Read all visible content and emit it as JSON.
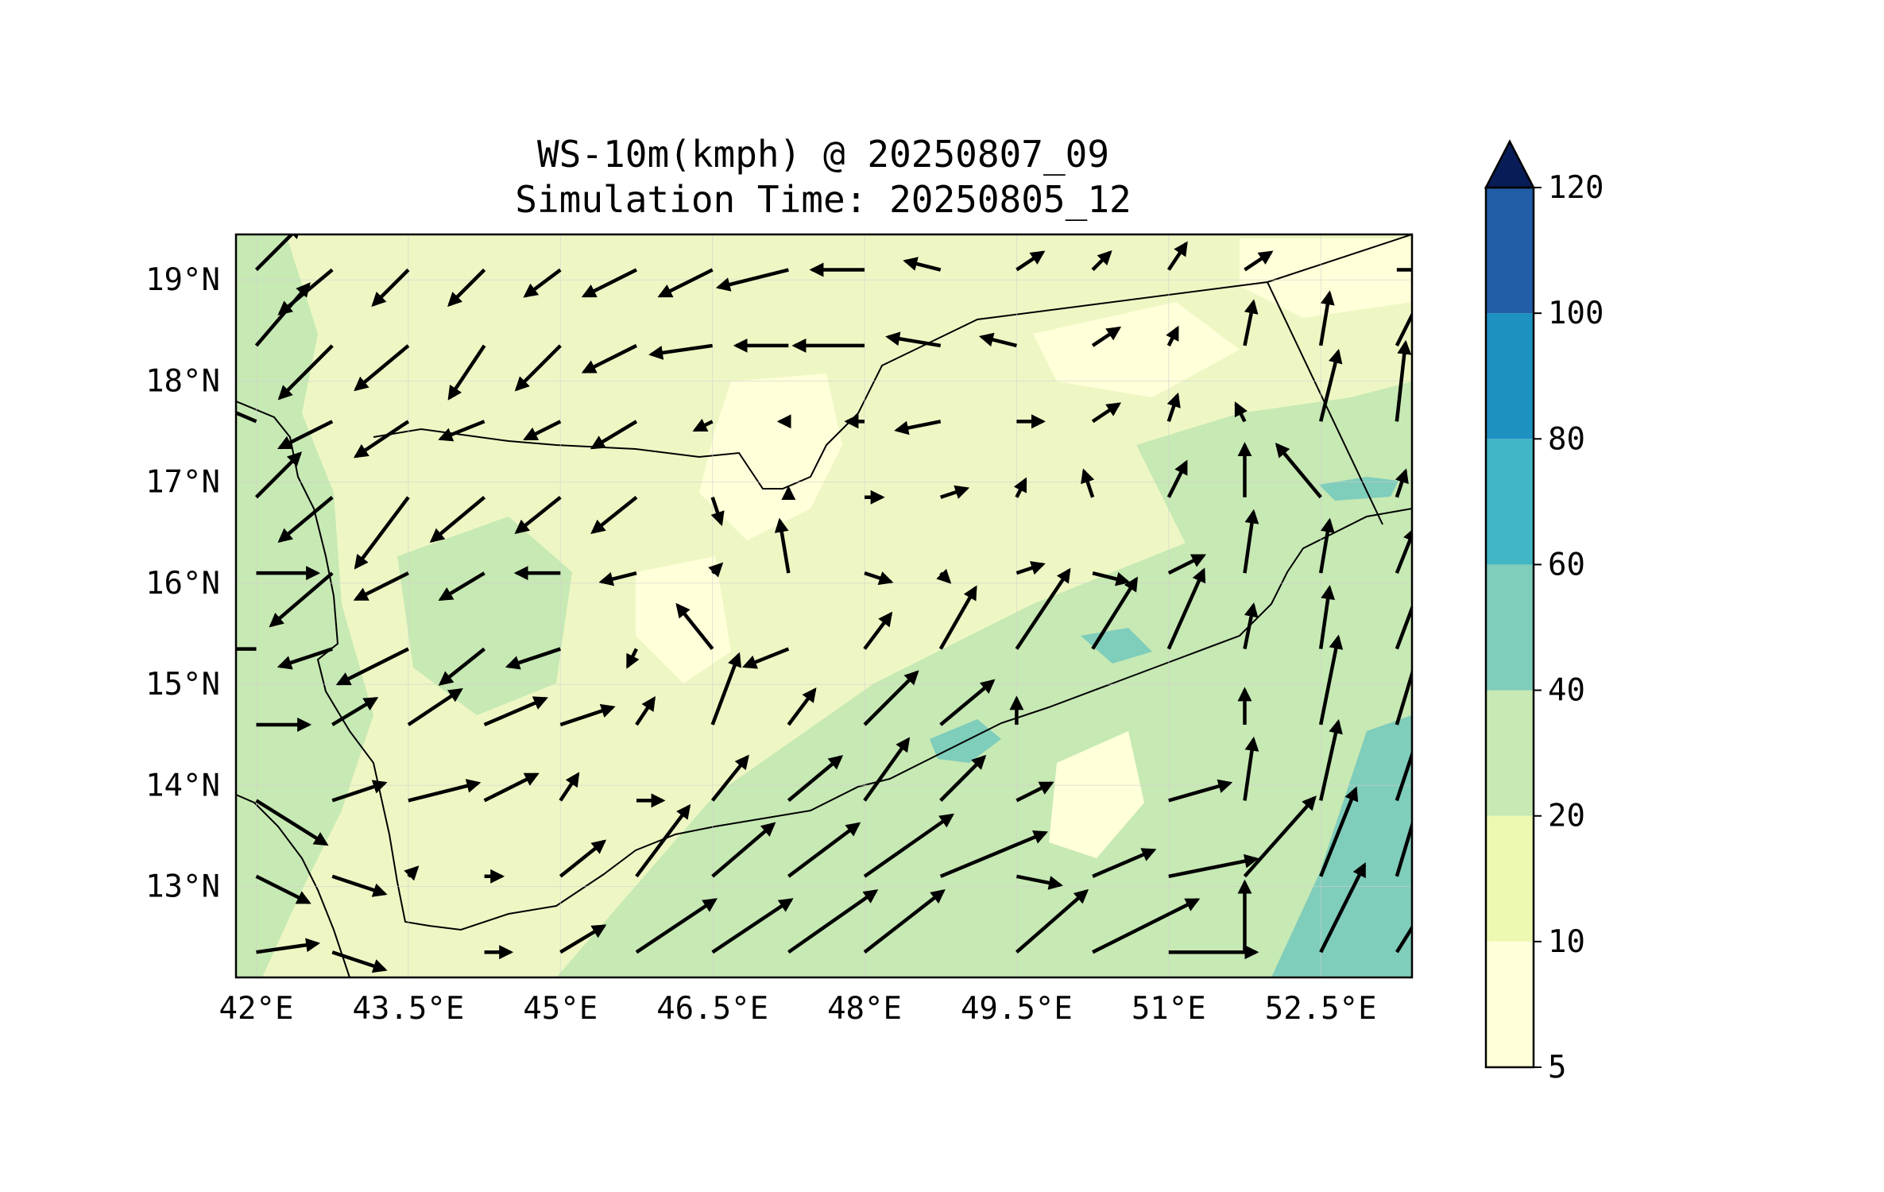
{
  "title": {
    "line1": "WS-10m(kmph) @ 20250807_09",
    "line2": "Simulation Time: 20250805_12"
  },
  "map": {
    "lon_range": [
      41.8,
      53.4
    ],
    "lat_range": [
      12.1,
      19.45
    ],
    "x_tick_values": [
      42,
      43.5,
      45,
      46.5,
      48,
      49.5,
      51,
      52.5
    ],
    "x_tick_labels": [
      "42°E",
      "43.5°E",
      "45°E",
      "46.5°E",
      "48°E",
      "49.5°E",
      "51°E",
      "52.5°E"
    ],
    "y_tick_values": [
      19,
      18,
      17,
      16,
      15,
      14,
      13
    ],
    "y_tick_labels": [
      "19°N",
      "18°N",
      "17°N",
      "16°N",
      "15°N",
      "14°N",
      "13°N"
    ],
    "gridlines": true,
    "background_fill_color": "#eef7c4"
  },
  "colorbar": {
    "levels": [
      5,
      10,
      20,
      40,
      60,
      80,
      100,
      120
    ],
    "tick_labels": [
      "5",
      "10",
      "20",
      "40",
      "60",
      "80",
      "100",
      "120"
    ],
    "colors": [
      "#ffffd9",
      "#edf8b1",
      "#c7e9b4",
      "#7fcdbb",
      "#41b6c4",
      "#1d91c0",
      "#225ea8",
      "#0c2c84"
    ],
    "extend": "max",
    "extend_color": "#081d58"
  },
  "chart_data": {
    "type": "map",
    "variable": "WS-10m (kmph)",
    "valid_time": "20250807_09",
    "simulation_time": "20250805_12",
    "wind_vectors": {
      "lons": [
        42.0,
        42.75,
        43.5,
        44.25,
        45.0,
        45.75,
        46.5,
        47.25,
        48.0,
        48.75,
        49.5,
        50.25,
        51.0,
        51.75,
        52.5,
        53.25
      ],
      "lats": [
        19.1,
        18.35,
        17.6,
        16.85,
        16.1,
        15.35,
        14.6,
        13.85,
        13.1,
        12.35
      ],
      "u": [
        [
          5,
          -6,
          -4,
          -4,
          -4,
          -6,
          -6,
          -8,
          -6,
          -4,
          3,
          2,
          2,
          3,
          0,
          4
        ],
        [
          6,
          -6,
          -6,
          -4,
          -5,
          -6,
          -7,
          -6,
          -8,
          -6,
          -4,
          3,
          1,
          1,
          1,
          3
        ],
        [
          -7,
          -6,
          -6,
          -5,
          -4,
          -5,
          -2,
          -1,
          -2,
          -5,
          3,
          3,
          1,
          -1,
          2,
          1
        ],
        [
          5,
          -6,
          -6,
          -6,
          -5,
          -5,
          1,
          0,
          2,
          3,
          1,
          -1,
          2,
          0,
          -5,
          1
        ],
        [
          7,
          -7,
          -6,
          -5,
          -5,
          -4,
          1,
          -1,
          3,
          1,
          3,
          4,
          4,
          1,
          1,
          2
        ],
        [
          -6,
          -6,
          -8,
          -5,
          -6,
          -1,
          -4,
          -5,
          3,
          4,
          6,
          5,
          4,
          1,
          1,
          3
        ],
        [
          6,
          5,
          6,
          7,
          6,
          2,
          3,
          3,
          6,
          6,
          0,
          0,
          0,
          0,
          2,
          3
        ],
        [
          8,
          6,
          8,
          6,
          2,
          3,
          4,
          6,
          5,
          5,
          4,
          0,
          7,
          1,
          2,
          3
        ],
        [
          6,
          6,
          1,
          2,
          5,
          6,
          7,
          8,
          10,
          12,
          5,
          7,
          10,
          8,
          4,
          3
        ],
        [
          7,
          6,
          0,
          3,
          5,
          9,
          9,
          10,
          9,
          0,
          8,
          12,
          10,
          0,
          5,
          5
        ]
      ],
      "v": [
        [
          5,
          -5,
          -4,
          -4,
          -3,
          -3,
          -3,
          -2,
          0,
          1,
          2,
          2,
          3,
          2,
          0,
          0
        ],
        [
          7,
          -6,
          -5,
          -6,
          -5,
          -3,
          -1,
          0,
          0,
          1,
          1,
          2,
          2,
          5,
          6,
          6
        ],
        [
          3,
          -3,
          -4,
          -2,
          -2,
          -3,
          -1,
          0,
          0,
          -1,
          0,
          2,
          3,
          2,
          8,
          9
        ],
        [
          5,
          -5,
          -8,
          -5,
          -4,
          -4,
          -3,
          1,
          0,
          1,
          2,
          3,
          4,
          6,
          6,
          3
        ],
        [
          0,
          -6,
          -3,
          -3,
          0,
          -1,
          1,
          6,
          -1,
          -1,
          1,
          -1,
          2,
          7,
          6,
          5
        ],
        [
          0,
          -2,
          -4,
          -4,
          -2,
          -2,
          5,
          -2,
          4,
          7,
          9,
          8,
          9,
          5,
          7,
          8
        ],
        [
          0,
          3,
          4,
          3,
          2,
          3,
          8,
          4,
          6,
          5,
          3,
          0,
          0,
          4,
          10,
          10
        ],
        [
          -5,
          2,
          2,
          3,
          3,
          0,
          5,
          5,
          7,
          5,
          2,
          0,
          2,
          7,
          9,
          9
        ],
        [
          -3,
          -2,
          1,
          0,
          4,
          8,
          6,
          6,
          7,
          5,
          -1,
          3,
          2,
          9,
          10,
          10
        ],
        [
          1,
          -2,
          0,
          0,
          3,
          6,
          6,
          7,
          7,
          0,
          7,
          6,
          0,
          8,
          10,
          8
        ]
      ]
    },
    "colorbar_levels": [
      5,
      10,
      20,
      40,
      60,
      80,
      100,
      120
    ],
    "xlim": [
      41.8,
      53.4
    ],
    "ylim": [
      12.1,
      19.45
    ]
  }
}
